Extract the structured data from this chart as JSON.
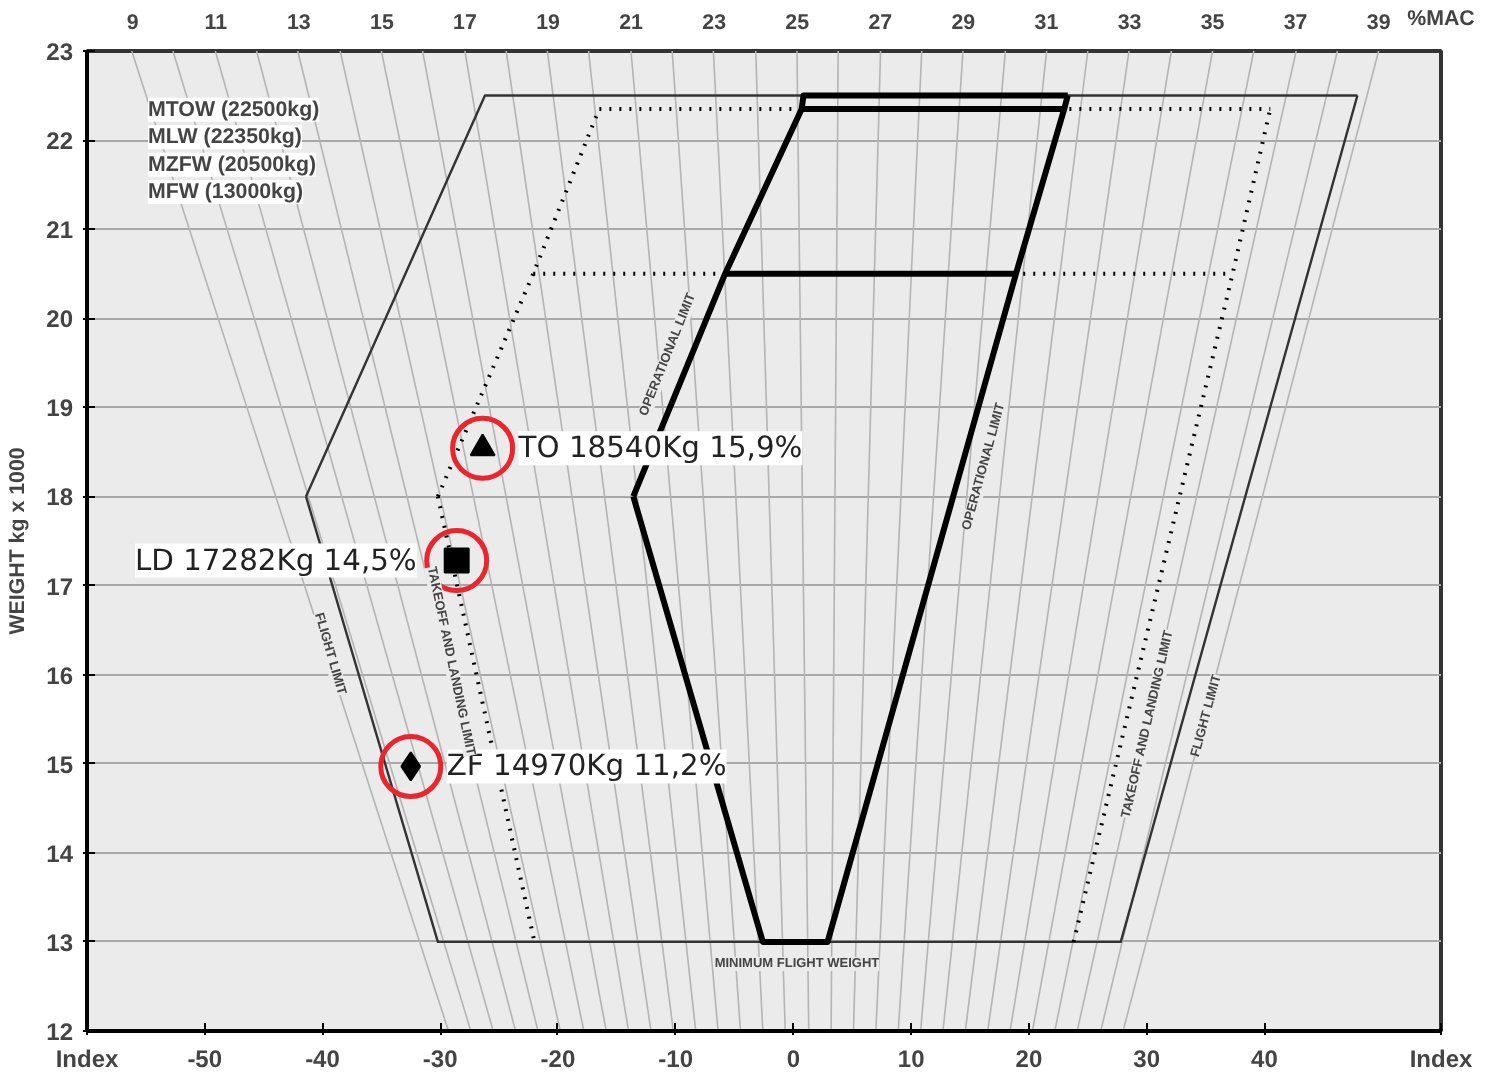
{
  "chart_data": {
    "type": "line",
    "xlabel": null,
    "ylabel": "WEIGHT kg x 1000",
    "x2label": "%MAC",
    "xlim": [
      -60,
      55
    ],
    "xticks": [
      {
        "value": -60,
        "label": "Index"
      },
      -50,
      -40,
      -30,
      -20,
      -10,
      0,
      10,
      20,
      30,
      40,
      {
        "value": 55,
        "label": "Index"
      }
    ],
    "ylim": [
      12,
      23
    ],
    "yticks": [
      12,
      13,
      14,
      15,
      16,
      17,
      18,
      19,
      20,
      21,
      22,
      23
    ],
    "x2lim": [
      7.9,
      40.5
    ],
    "x2ticks": [
      9,
      11,
      13,
      15,
      17,
      19,
      21,
      23,
      25,
      27,
      29,
      31,
      33,
      35,
      37,
      39
    ],
    "grid": "y",
    "series": [
      {
        "color": "#b4b4b4",
        "x": [
          -56.2,
          -29.3
        ],
        "values": [
          23,
          12
        ]
      },
      {
        "color": "#b4b4b4",
        "x": [
          -52.7,
          -27.4
        ],
        "values": [
          23,
          12
        ]
      },
      {
        "color": "#b4b4b4",
        "x": [
          -49.1,
          -25.5
        ],
        "values": [
          23,
          12
        ]
      },
      {
        "color": "#b4b4b4",
        "x": [
          -45.6,
          -23.6
        ],
        "values": [
          23,
          12
        ]
      },
      {
        "color": "#b4b4b4",
        "x": [
          -42.1,
          -21.7
        ],
        "values": [
          23,
          12
        ]
      },
      {
        "color": "#b4b4b4",
        "x": [
          -38.5,
          -19.8
        ],
        "values": [
          23,
          12
        ]
      },
      {
        "color": "#b4b4b4",
        "x": [
          -35.0,
          -17.8
        ],
        "values": [
          23,
          12
        ]
      },
      {
        "color": "#b4b4b4",
        "x": [
          -31.5,
          -15.9
        ],
        "values": [
          23,
          12
        ]
      },
      {
        "color": "#b4b4b4",
        "x": [
          -27.9,
          -14.0
        ],
        "values": [
          23,
          12
        ]
      },
      {
        "color": "#b4b4b4",
        "x": [
          -24.4,
          -12.1
        ],
        "values": [
          23,
          12
        ]
      },
      {
        "color": "#b4b4b4",
        "x": [
          -20.9,
          -10.2
        ],
        "values": [
          23,
          12
        ]
      },
      {
        "color": "#b4b4b4",
        "x": [
          -17.4,
          -8.3
        ],
        "values": [
          23,
          12
        ]
      },
      {
        "color": "#b4b4b4",
        "x": [
          -13.8,
          -6.4
        ],
        "values": [
          23,
          12
        ]
      },
      {
        "color": "#b4b4b4",
        "x": [
          -10.3,
          -4.5
        ],
        "values": [
          23,
          12
        ]
      },
      {
        "color": "#b4b4b4",
        "x": [
          -6.8,
          -2.6
        ],
        "values": [
          23,
          12
        ]
      },
      {
        "color": "#b4b4b4",
        "x": [
          -3.2,
          -0.7
        ],
        "values": [
          23,
          12
        ]
      },
      {
        "color": "#b4b4b4",
        "x": [
          0.3,
          1.3
        ],
        "values": [
          23,
          12
        ]
      },
      {
        "color": "#b4b4b4",
        "x": [
          3.8,
          3.2
        ],
        "values": [
          23,
          12
        ]
      },
      {
        "color": "#b4b4b4",
        "x": [
          7.4,
          5.1
        ],
        "values": [
          23,
          12
        ]
      },
      {
        "color": "#b4b4b4",
        "x": [
          10.9,
          7.0
        ],
        "values": [
          23,
          12
        ]
      },
      {
        "color": "#b4b4b4",
        "x": [
          14.4,
          8.9
        ],
        "values": [
          23,
          12
        ]
      },
      {
        "color": "#b4b4b4",
        "x": [
          18.0,
          10.8
        ],
        "values": [
          23,
          12
        ]
      },
      {
        "color": "#b4b4b4",
        "x": [
          21.5,
          12.7
        ],
        "values": [
          23,
          12
        ]
      },
      {
        "color": "#b4b4b4",
        "x": [
          25.0,
          14.6
        ],
        "values": [
          23,
          12
        ]
      },
      {
        "color": "#b4b4b4",
        "x": [
          28.5,
          16.5
        ],
        "values": [
          23,
          12
        ]
      },
      {
        "color": "#b4b4b4",
        "x": [
          32.1,
          18.4
        ],
        "values": [
          23,
          12
        ]
      },
      {
        "color": "#b4b4b4",
        "x": [
          35.6,
          20.3
        ],
        "values": [
          23,
          12
        ]
      },
      {
        "color": "#b4b4b4",
        "x": [
          39.1,
          22.2
        ],
        "values": [
          23,
          12
        ]
      },
      {
        "color": "#b4b4b4",
        "x": [
          42.7,
          24.1
        ],
        "values": [
          23,
          12
        ]
      },
      {
        "color": "#b4b4b4",
        "x": [
          46.2,
          26.1
        ],
        "values": [
          23,
          12
        ]
      },
      {
        "color": "#b4b4b4",
        "x": [
          49.7,
          28.0
        ],
        "values": [
          23,
          12
        ]
      },
      {
        "color": "#333333",
        "x": [
          -41.4,
          -26.2,
          47.9
        ],
        "values": [
          18,
          22.5,
          22.5
        ]
      },
      {
        "color": "#333333",
        "x": [
          -41.4,
          -30.2,
          27.8,
          47.9
        ],
        "values": [
          18,
          13,
          13,
          22.5
        ]
      },
      {
        "color": "#000000",
        "line_style": "dotted",
        "x": [
          -30.2,
          -22.1,
          -16.5,
          40.5
        ],
        "values": [
          18,
          20.5,
          22.35,
          22.35
        ]
      },
      {
        "color": "#000000",
        "line_style": "dotted",
        "x": [
          -30.2,
          -22.0
        ],
        "values": [
          18,
          13
        ]
      },
      {
        "color": "#000000",
        "line_style": "dotted",
        "x": [
          23.8,
          37.3,
          40.5
        ],
        "values": [
          13,
          20.5,
          22.35
        ]
      },
      {
        "color": "#000000",
        "line_style": "dotted",
        "x": [
          -22.1,
          37.3
        ],
        "values": [
          20.5,
          20.5
        ]
      },
      {
        "color": "#000000",
        "x": [
          -13.6,
          -5.8,
          0.7,
          0.85,
          23.3
        ],
        "values": [
          18,
          20.5,
          22.35,
          22.5,
          22.5
        ]
      },
      {
        "color": "#000000",
        "x": [
          -13.6,
          -2.6,
          2.9,
          18.9,
          23.0,
          23.3
        ],
        "values": [
          18,
          13,
          13,
          20.5,
          22.35,
          22.5
        ]
      },
      {
        "color": "#000000",
        "x": [
          0.7,
          23.0
        ],
        "values": [
          22.35,
          22.35
        ]
      },
      {
        "color": "#000000",
        "x": [
          -5.8,
          18.9
        ],
        "values": [
          20.5,
          20.5
        ]
      },
      {
        "type": "scatter",
        "marker": "triangle",
        "color": "#000000",
        "x": [
          -26.4
        ],
        "values": [
          18.54
        ]
      },
      {
        "type": "scatter",
        "marker": "square",
        "color": "#000000",
        "x": [
          -28.6
        ],
        "values": [
          17.28
        ]
      },
      {
        "type": "scatter",
        "marker": "diamond",
        "color": "#000000",
        "x": [
          -32.5
        ],
        "values": [
          14.97
        ]
      },
      {
        "type": "scatter",
        "marker": "circle",
        "color": "#e8262b",
        "x": [
          -26.4,
          -28.6,
          -32.5
        ],
        "values": [
          18.54,
          17.28,
          14.97
        ]
      }
    ],
    "annotations": [
      "MTOW (22500kg)",
      "MLW (22350kg)",
      "MZFW (20500kg)",
      "MFW (13000kg)",
      {
        "text": "TO 18540Kg 15,9%",
        "x": -26.4,
        "y": 18.54
      },
      {
        "text": "LD 17282Kg 14,5%",
        "x": -28.6,
        "y": 17.28
      },
      {
        "text": "ZF 14970Kg 11,2%",
        "x": -32.5,
        "y": 14.97
      },
      {
        "text": "OPERATIONAL LIMIT",
        "x": -8.9,
        "y": 19.5
      },
      {
        "text": "OPERATIONAL LIMIT",
        "x": 14.4,
        "y": 18.4
      },
      {
        "text": "TAKEOFF AND LANDING LIMIT",
        "x": -27.3,
        "y": 16.2
      },
      {
        "text": "TAKEOFF AND LANDING LIMIT",
        "x": 28.3,
        "y": 15.5
      },
      {
        "text": "FLIGHT LIMIT",
        "x": -37.6,
        "y": 16.3
      },
      {
        "text": "FLIGHT LIMIT",
        "x": 33.3,
        "y": 15.6
      },
      {
        "text": "MINIMUM FLIGHT WEIGHT",
        "x": 0.3,
        "y": 13
      }
    ]
  }
}
